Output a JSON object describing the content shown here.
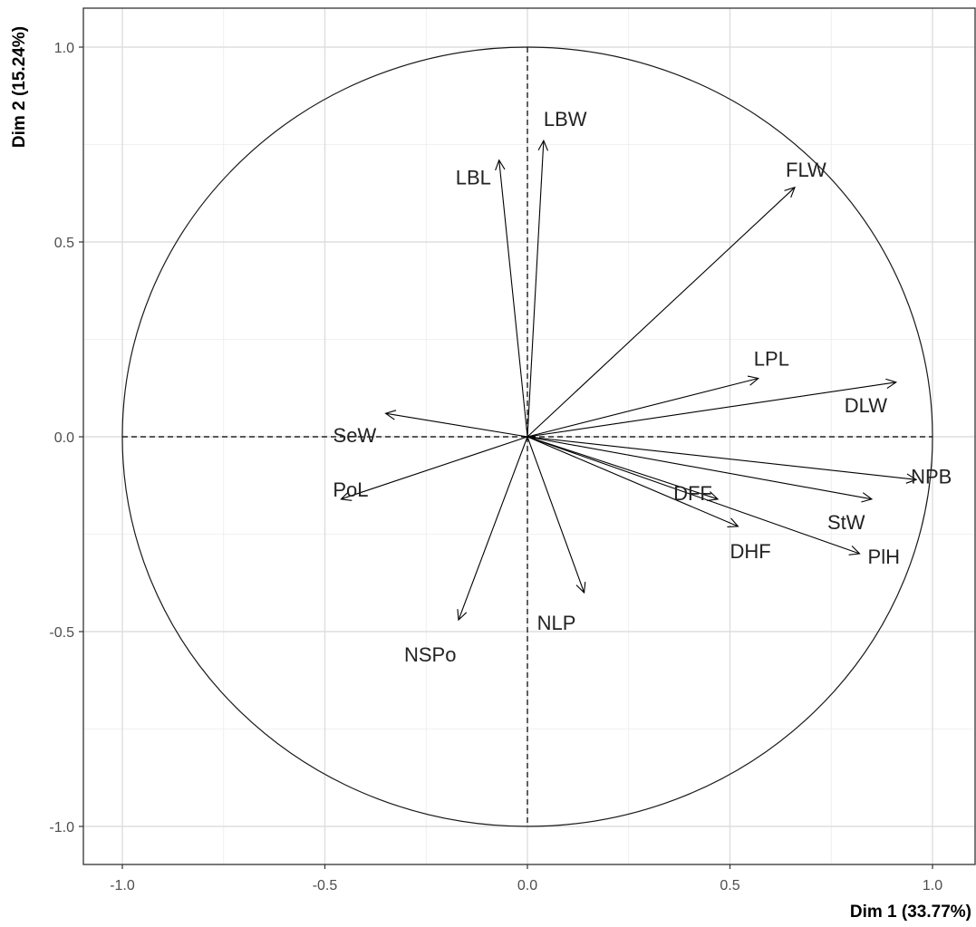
{
  "chart_data": {
    "type": "scatter",
    "subtype": "pca-correlation-circle",
    "title": "",
    "xlabel": "Dim 1 (33.77%)",
    "ylabel": "Dim 2 (15.24%)",
    "xlim": [
      -1.1,
      1.1
    ],
    "ylim": [
      -1.1,
      1.1
    ],
    "x_ticks": [
      -1.0,
      -0.5,
      0.0,
      0.5,
      1.0
    ],
    "y_ticks": [
      -1.0,
      -0.5,
      0.0,
      0.5,
      1.0
    ],
    "x_tick_labels": [
      "-1.0",
      "-0.5",
      "0.0",
      "0.5",
      "1.0"
    ],
    "y_tick_labels": [
      "-1.0",
      "-0.5",
      "0.0",
      "0.5",
      "1.0"
    ],
    "grid": true,
    "unit_circle": true,
    "variables": [
      {
        "name": "LBW",
        "x": 0.04,
        "y": 0.76
      },
      {
        "name": "LBL",
        "x": -0.07,
        "y": 0.71
      },
      {
        "name": "FLW",
        "x": 0.66,
        "y": 0.64
      },
      {
        "name": "LPL",
        "x": 0.57,
        "y": 0.15
      },
      {
        "name": "DLW",
        "x": 0.91,
        "y": 0.14
      },
      {
        "name": "NPB",
        "x": 0.96,
        "y": -0.11
      },
      {
        "name": "DFF",
        "x": 0.47,
        "y": -0.16
      },
      {
        "name": "StW",
        "x": 0.85,
        "y": -0.16
      },
      {
        "name": "DHF",
        "x": 0.52,
        "y": -0.23
      },
      {
        "name": "PlH",
        "x": 0.82,
        "y": -0.3
      },
      {
        "name": "NLP",
        "x": 0.14,
        "y": -0.4
      },
      {
        "name": "NSPo",
        "x": -0.17,
        "y": -0.47
      },
      {
        "name": "SeW",
        "x": -0.35,
        "y": 0.06
      },
      {
        "name": "PoL",
        "x": -0.46,
        "y": -0.16
      }
    ]
  }
}
